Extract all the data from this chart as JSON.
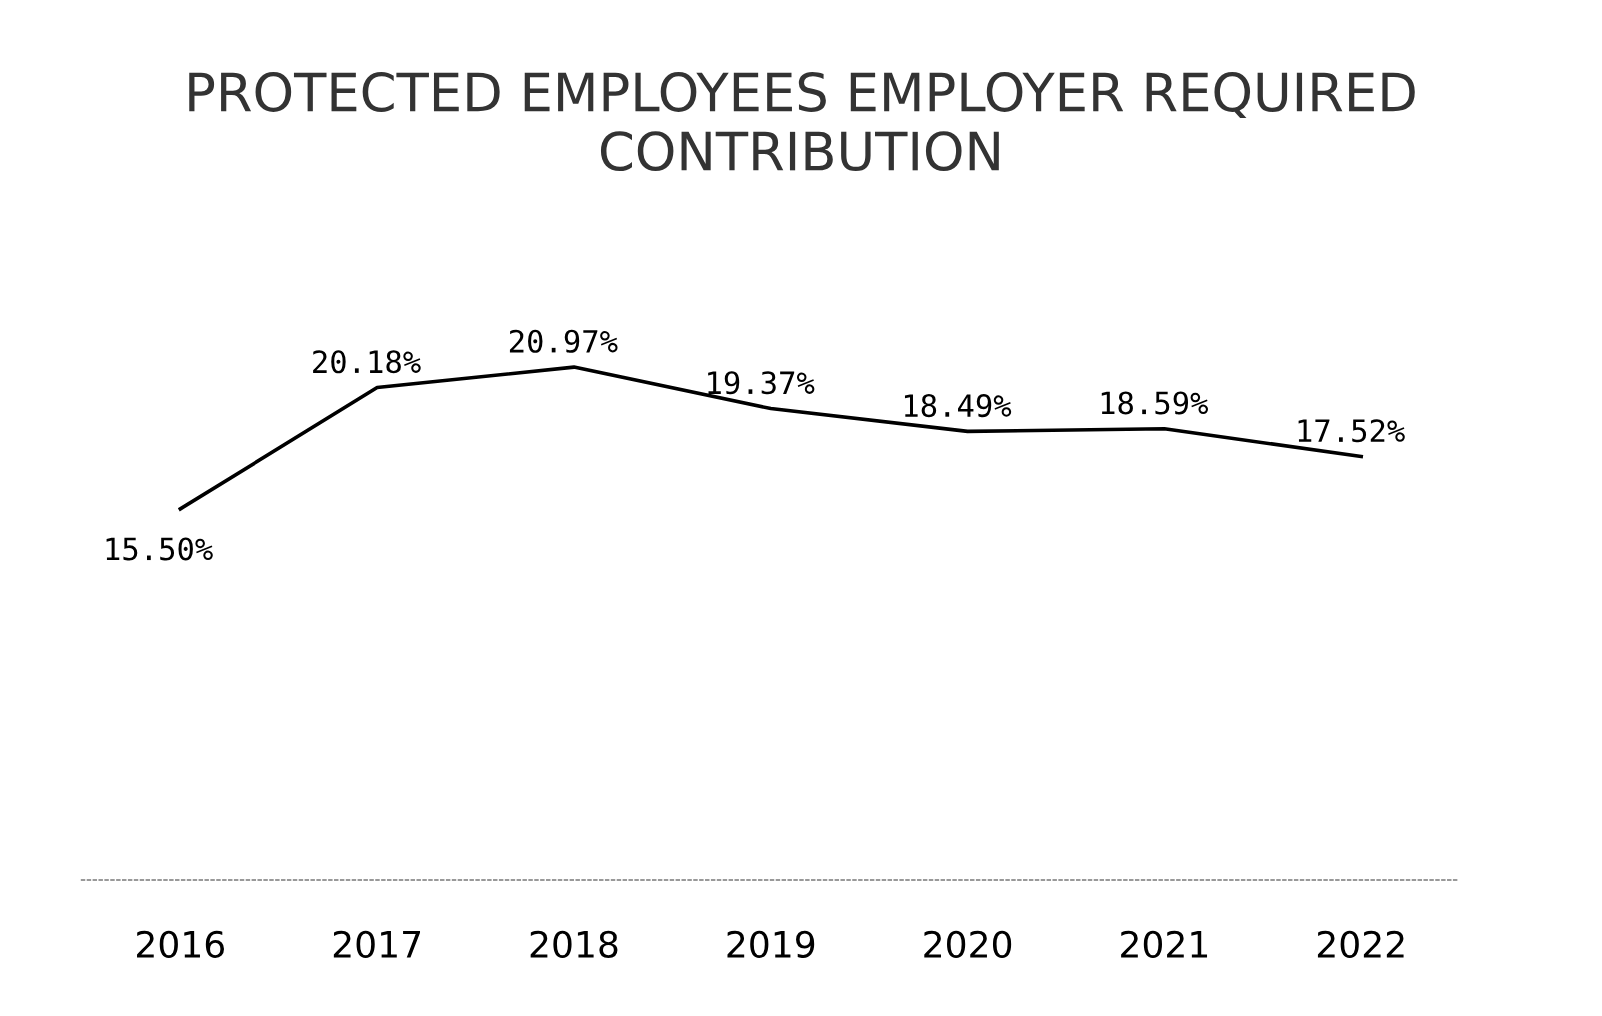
{
  "chart_data": {
    "type": "line",
    "title": "PROTECTED EMPLOYEES EMPLOYER REQUIRED CONTRIBUTION",
    "categories": [
      "2016",
      "2017",
      "2018",
      "2019",
      "2020",
      "2021",
      "2022"
    ],
    "series": [
      {
        "color": "#000000",
        "values": [
          15.5,
          20.18,
          20.97,
          19.37,
          18.49,
          18.59,
          17.52
        ],
        "value_labels": [
          "15.50%",
          "20.18%",
          "20.97%",
          "19.37%",
          "18.49%",
          "18.59%",
          "17.52%"
        ]
      }
    ],
    "tick_labels": "x",
    "marker": "none",
    "line_style": "solid"
  }
}
